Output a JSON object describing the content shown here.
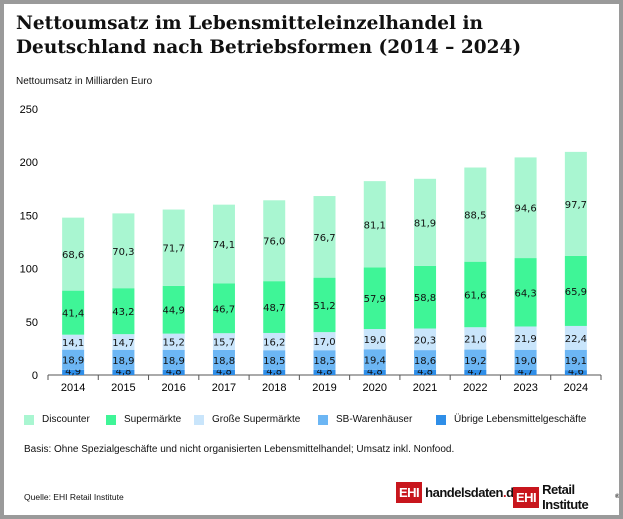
{
  "chart_data": {
    "type": "bar",
    "stacked": true,
    "title": "Nettoumsatz im Lebensmitteleinzelhandel in Deutschland nach Betriebsformen (2014 – 2024)",
    "ylabel": "Nettoumsatz in Milliarden Euro",
    "ylim": [
      0,
      250
    ],
    "yticks": [
      "0",
      "50",
      "100",
      "150",
      "200",
      "250"
    ],
    "categories": [
      "2014",
      "2015",
      "2016",
      "2017",
      "2018",
      "2019",
      "2020",
      "2021",
      "2022",
      "2023",
      "2024"
    ],
    "series": [
      {
        "name": "Übrige Lebensmittelgeschäfte",
        "color": "#2f8ee8",
        "values": [
          4.9,
          4.8,
          4.8,
          4.8,
          4.8,
          4.8,
          4.8,
          4.8,
          4.7,
          4.7,
          4.6
        ]
      },
      {
        "name": "SB-Warenhäuser",
        "color": "#6cb6f4",
        "values": [
          18.9,
          18.9,
          18.9,
          18.8,
          18.5,
          18.5,
          19.4,
          18.6,
          19.2,
          19.0,
          19.1
        ]
      },
      {
        "name": "Große Supermärkte",
        "color": "#c9e5fb",
        "values": [
          14.1,
          14.7,
          15.2,
          15.7,
          16.2,
          17.0,
          19.0,
          20.3,
          21.0,
          21.9,
          22.4
        ]
      },
      {
        "name": "Supermärkte",
        "color": "#3ff597",
        "values": [
          41.4,
          43.2,
          44.9,
          46.7,
          48.7,
          51.2,
          57.9,
          58.8,
          61.6,
          64.3,
          65.9
        ]
      },
      {
        "name": "Discounter",
        "color": "#a9f6d1",
        "values": [
          68.6,
          70.3,
          71.7,
          74.1,
          76.0,
          76.7,
          81.1,
          81.9,
          88.5,
          94.6,
          97.7
        ]
      }
    ],
    "legend_order": [
      "Discounter",
      "Supermärkte",
      "Große Supermärkte",
      "SB-Warenhäuser",
      "Übrige Lebensmittelgeschäfte"
    ],
    "legend_position": "bottom",
    "grid": false
  },
  "note": "Basis: Ohne Spezialgeschäfte und nicht organisierten Lebensmittelhandel; Umsatz inkl. Nonfood.",
  "source": "Quelle: EHI Retail Institute",
  "logos": {
    "ehi": "EHI",
    "site": "handelsdaten",
    "site_dot": ".",
    "site_tld": "de",
    "institute": "Retail Institute"
  }
}
